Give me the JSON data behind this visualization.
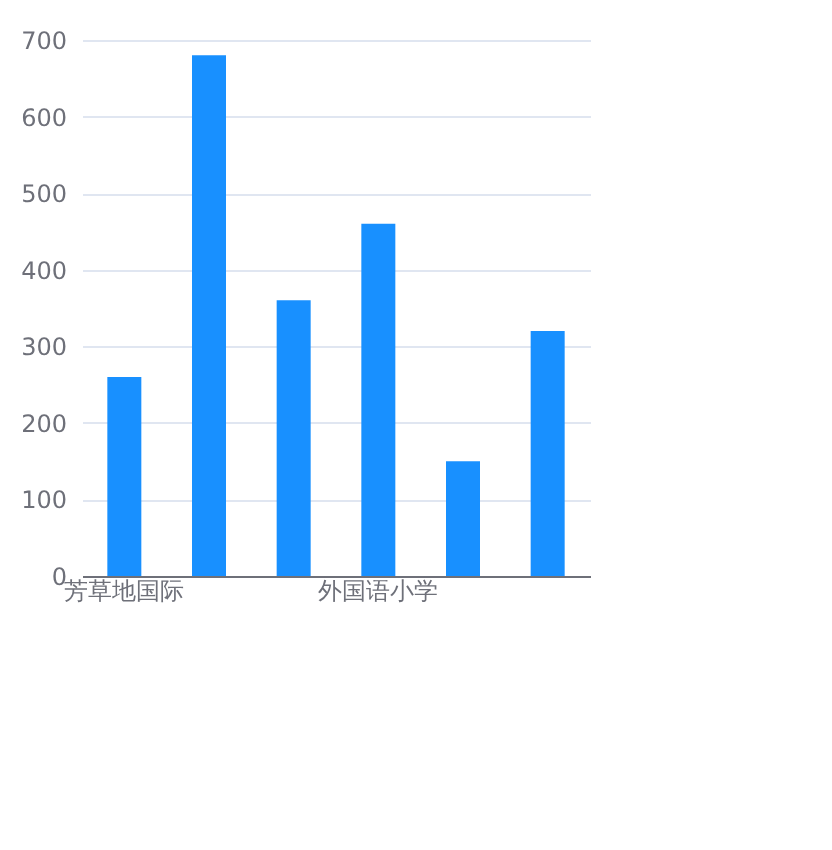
{
  "chart_data": {
    "type": "bar",
    "categories": [
      "芳草地国际",
      null,
      null,
      "外国语小学",
      null,
      null
    ],
    "values": [
      260,
      680,
      360,
      460,
      150,
      320
    ],
    "color": "#1890ff",
    "ylim": [
      0,
      700
    ],
    "yticks": [
      0,
      100,
      200,
      300,
      400,
      500,
      600,
      700
    ],
    "grid": "y"
  }
}
